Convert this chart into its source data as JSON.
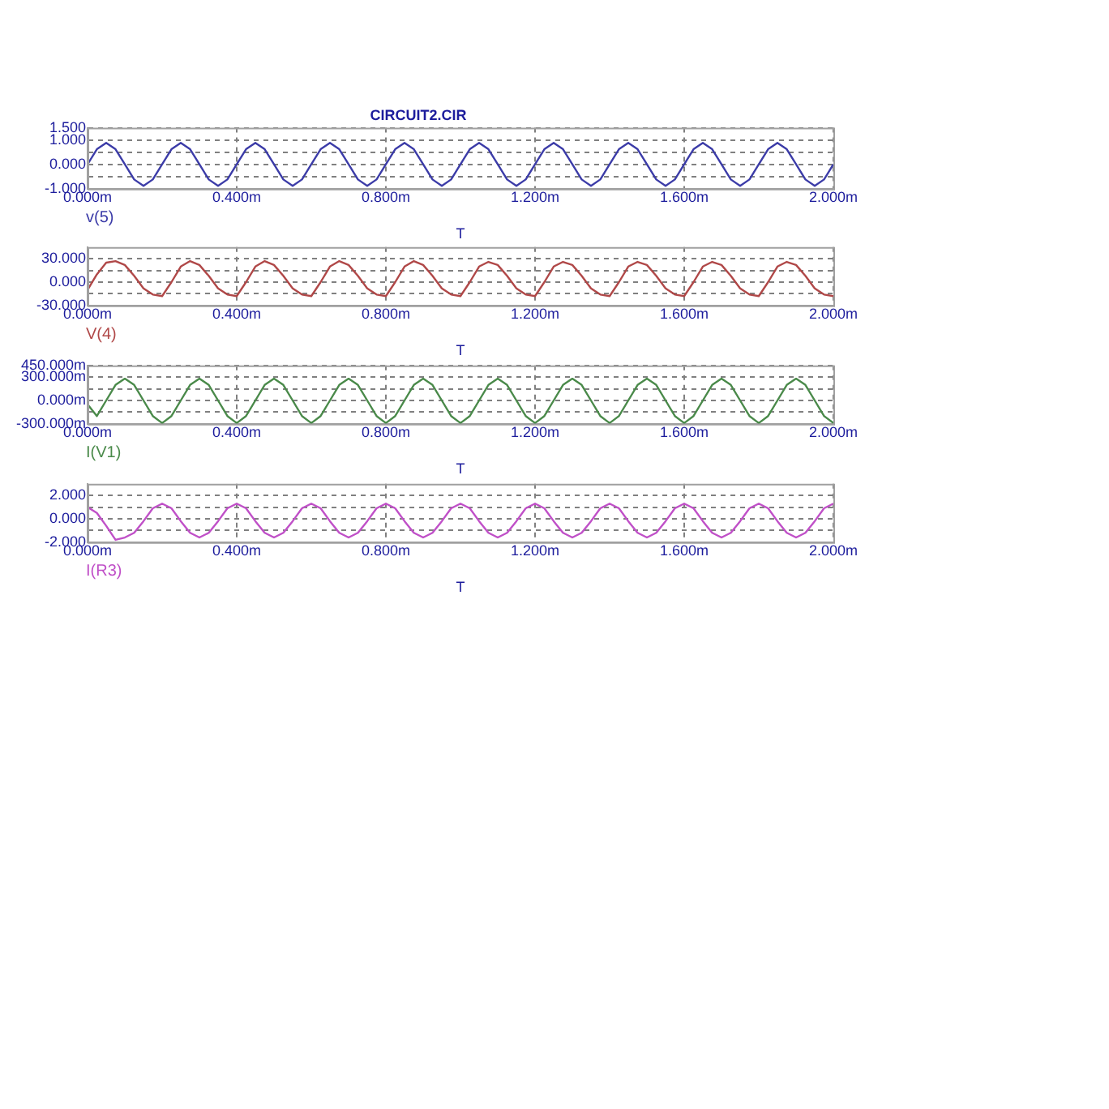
{
  "chart_data": [
    {
      "type": "line",
      "title": "CIRCUIT2.CIR",
      "xlabel": "T",
      "grid": true,
      "legend": false,
      "marker": "none",
      "line_style": "solid",
      "xlim": [
        0,
        2
      ],
      "xticks": [
        {
          "value": 0,
          "label": "0.000m"
        },
        {
          "value": 0.4,
          "label": "0.400m"
        },
        {
          "value": 0.8,
          "label": "0.800m"
        },
        {
          "value": 1.2,
          "label": "1.200m"
        },
        {
          "value": 1.6,
          "label": "1.600m"
        },
        {
          "value": 2,
          "label": "2.000m"
        }
      ],
      "ylim": [
        -1,
        1.5
      ],
      "yticks": [
        {
          "value": -1,
          "label": "-1.000"
        },
        {
          "value": -0.5,
          "label": null
        },
        {
          "value": 0,
          "label": "0.000"
        },
        {
          "value": 0.5,
          "label": null
        },
        {
          "value": 1,
          "label": "1.000"
        },
        {
          "value": 1.5,
          "label": "1.500"
        }
      ],
      "x": [
        0,
        0.025,
        0.05,
        0.075,
        0.1,
        0.125,
        0.15,
        0.175,
        0.2,
        0.225,
        0.25,
        0.275,
        0.3,
        0.325,
        0.35,
        0.375,
        0.4,
        0.425,
        0.45,
        0.475,
        0.5,
        0.525,
        0.55,
        0.575,
        0.6,
        0.625,
        0.65,
        0.675,
        0.7,
        0.725,
        0.75,
        0.775,
        0.8,
        0.825,
        0.85,
        0.875,
        0.9,
        0.925,
        0.95,
        0.975,
        1,
        1.025,
        1.05,
        1.075,
        1.1,
        1.125,
        1.15,
        1.175,
        1.2,
        1.225,
        1.25,
        1.275,
        1.3,
        1.325,
        1.35,
        1.375,
        1.4,
        1.425,
        1.45,
        1.475,
        1.5,
        1.525,
        1.55,
        1.575,
        1.6,
        1.625,
        1.65,
        1.675,
        1.7,
        1.725,
        1.75,
        1.775,
        1.8,
        1.825,
        1.85,
        1.875,
        1.9,
        1.925,
        1.95,
        1.975,
        2
      ],
      "series": [
        {
          "name": "v(5)",
          "color": "#3c3ca8",
          "values": [
            0,
            0.62,
            0.88,
            0.62,
            0,
            -0.62,
            -0.88,
            -0.62,
            0,
            0.62,
            0.88,
            0.62,
            0,
            -0.62,
            -0.88,
            -0.62,
            0,
            0.62,
            0.88,
            0.62,
            0,
            -0.62,
            -0.88,
            -0.62,
            0,
            0.62,
            0.88,
            0.62,
            0,
            -0.62,
            -0.88,
            -0.62,
            0,
            0.62,
            0.88,
            0.62,
            0,
            -0.62,
            -0.88,
            -0.62,
            0,
            0.62,
            0.88,
            0.62,
            0,
            -0.62,
            -0.88,
            -0.62,
            0,
            0.62,
            0.88,
            0.62,
            0,
            -0.62,
            -0.88,
            -0.62,
            0,
            0.62,
            0.88,
            0.62,
            0,
            -0.62,
            -0.88,
            -0.62,
            0,
            0.62,
            0.88,
            0.62,
            0,
            -0.62,
            -0.88,
            -0.62,
            0,
            0.62,
            0.88,
            0.62,
            0,
            -0.62,
            -0.88,
            -0.62,
            0
          ]
        }
      ]
    },
    {
      "type": "line",
      "xlabel": "T",
      "grid": true,
      "legend": false,
      "marker": "none",
      "line_style": "solid",
      "xlim": [
        0,
        2
      ],
      "xticks": [
        {
          "value": 0,
          "label": "0.000m"
        },
        {
          "value": 0.4,
          "label": "0.400m"
        },
        {
          "value": 0.8,
          "label": "0.800m"
        },
        {
          "value": 1.2,
          "label": "1.200m"
        },
        {
          "value": 1.6,
          "label": "1.600m"
        },
        {
          "value": 2,
          "label": "2.000m"
        }
      ],
      "ylim": [
        -30,
        45
      ],
      "yticks": [
        {
          "value": -30,
          "label": "-30.000"
        },
        {
          "value": -15,
          "label": null
        },
        {
          "value": 0,
          "label": "0.000"
        },
        {
          "value": 15,
          "label": null
        },
        {
          "value": 30,
          "label": "30.000"
        }
      ],
      "x": [
        0,
        0.025,
        0.05,
        0.075,
        0.1,
        0.125,
        0.15,
        0.175,
        0.2,
        0.225,
        0.25,
        0.275,
        0.3,
        0.325,
        0.35,
        0.375,
        0.4,
        0.425,
        0.45,
        0.475,
        0.5,
        0.525,
        0.55,
        0.575,
        0.6,
        0.625,
        0.65,
        0.675,
        0.7,
        0.725,
        0.75,
        0.775,
        0.8,
        0.825,
        0.85,
        0.875,
        0.9,
        0.925,
        0.95,
        0.975,
        1,
        1.025,
        1.05,
        1.075,
        1.1,
        1.125,
        1.15,
        1.175,
        1.2,
        1.225,
        1.25,
        1.275,
        1.3,
        1.325,
        1.35,
        1.375,
        1.4,
        1.425,
        1.45,
        1.475,
        1.5,
        1.525,
        1.55,
        1.575,
        1.6,
        1.625,
        1.65,
        1.675,
        1.7,
        1.725,
        1.75,
        1.775,
        1.8,
        1.825,
        1.85,
        1.875,
        1.9,
        1.925,
        1.95,
        1.975,
        2
      ],
      "series": [
        {
          "name": "V(4)",
          "color": "#b04848",
          "values": [
            -10,
            10,
            25,
            27,
            22,
            8,
            -8,
            -16,
            -18,
            0,
            20,
            27,
            22,
            8,
            -8,
            -16,
            -18,
            0,
            20,
            27,
            22,
            8,
            -8,
            -16,
            -18,
            0,
            20,
            27,
            22,
            8,
            -8,
            -16,
            -18,
            0,
            20,
            27,
            22,
            8,
            -8,
            -16,
            -18,
            0,
            20,
            26,
            22,
            8,
            -8,
            -16,
            -18,
            0,
            20,
            26,
            22,
            8,
            -8,
            -16,
            -18,
            0,
            20,
            26,
            22,
            8,
            -8,
            -16,
            -18,
            0,
            20,
            26,
            22,
            8,
            -8,
            -16,
            -18,
            0,
            20,
            26,
            22,
            8,
            -8,
            -16,
            -18
          ]
        }
      ]
    },
    {
      "type": "line",
      "xlabel": "T",
      "grid": true,
      "legend": false,
      "marker": "none",
      "line_style": "solid",
      "xlim": [
        0,
        2
      ],
      "xticks": [
        {
          "value": 0,
          "label": "0.000m"
        },
        {
          "value": 0.4,
          "label": "0.400m"
        },
        {
          "value": 0.8,
          "label": "0.800m"
        },
        {
          "value": 1.2,
          "label": "1.200m"
        },
        {
          "value": 1.6,
          "label": "1.600m"
        },
        {
          "value": 2,
          "label": "2.000m"
        }
      ],
      "ylim": [
        -300,
        450
      ],
      "yticks": [
        {
          "value": -300,
          "label": "-300.000m"
        },
        {
          "value": -150,
          "label": null
        },
        {
          "value": 0,
          "label": "0.000m"
        },
        {
          "value": 150,
          "label": null
        },
        {
          "value": 300,
          "label": "300.000m"
        },
        {
          "value": 450,
          "label": "450.000m"
        }
      ],
      "x": [
        0,
        0.025,
        0.05,
        0.075,
        0.1,
        0.125,
        0.15,
        0.175,
        0.2,
        0.225,
        0.25,
        0.275,
        0.3,
        0.325,
        0.35,
        0.375,
        0.4,
        0.425,
        0.45,
        0.475,
        0.5,
        0.525,
        0.55,
        0.575,
        0.6,
        0.625,
        0.65,
        0.675,
        0.7,
        0.725,
        0.75,
        0.775,
        0.8,
        0.825,
        0.85,
        0.875,
        0.9,
        0.925,
        0.95,
        0.975,
        1,
        1.025,
        1.05,
        1.075,
        1.1,
        1.125,
        1.15,
        1.175,
        1.2,
        1.225,
        1.25,
        1.275,
        1.3,
        1.325,
        1.35,
        1.375,
        1.4,
        1.425,
        1.45,
        1.475,
        1.5,
        1.525,
        1.55,
        1.575,
        1.6,
        1.625,
        1.65,
        1.675,
        1.7,
        1.725,
        1.75,
        1.775,
        1.8,
        1.825,
        1.85,
        1.875,
        1.9,
        1.925,
        1.95,
        1.975,
        2
      ],
      "series": [
        {
          "name": "I(V1)",
          "color": "#4a8a4a",
          "values": [
            -50,
            -200,
            0,
            200,
            280,
            200,
            0,
            -200,
            -290,
            -200,
            0,
            200,
            280,
            200,
            0,
            -200,
            -290,
            -200,
            0,
            200,
            280,
            200,
            0,
            -200,
            -290,
            -200,
            0,
            200,
            280,
            200,
            0,
            -200,
            -290,
            -200,
            0,
            200,
            280,
            200,
            0,
            -200,
            -290,
            -200,
            0,
            200,
            280,
            200,
            0,
            -200,
            -290,
            -200,
            0,
            200,
            280,
            200,
            0,
            -200,
            -290,
            -200,
            0,
            200,
            280,
            200,
            0,
            -200,
            -290,
            -200,
            0,
            200,
            280,
            200,
            0,
            -200,
            -290,
            -200,
            0,
            200,
            280,
            200,
            0,
            -200,
            -290
          ]
        }
      ]
    },
    {
      "type": "line",
      "xlabel": "T",
      "grid": true,
      "legend": false,
      "marker": "none",
      "line_style": "solid",
      "xlim": [
        0,
        2
      ],
      "xticks": [
        {
          "value": 0,
          "label": "0.000m"
        },
        {
          "value": 0.4,
          "label": "0.400m"
        },
        {
          "value": 0.8,
          "label": "0.800m"
        },
        {
          "value": 1.2,
          "label": "1.200m"
        },
        {
          "value": 1.6,
          "label": "1.600m"
        },
        {
          "value": 2,
          "label": "2.000m"
        }
      ],
      "ylim": [
        -2,
        3
      ],
      "yticks": [
        {
          "value": -2,
          "label": "-2.000"
        },
        {
          "value": -1,
          "label": null
        },
        {
          "value": 0,
          "label": "0.000"
        },
        {
          "value": 1,
          "label": null
        },
        {
          "value": 2,
          "label": "2.000"
        }
      ],
      "x": [
        0,
        0.025,
        0.05,
        0.075,
        0.1,
        0.125,
        0.15,
        0.175,
        0.2,
        0.225,
        0.25,
        0.275,
        0.3,
        0.325,
        0.35,
        0.375,
        0.4,
        0.425,
        0.45,
        0.475,
        0.5,
        0.525,
        0.55,
        0.575,
        0.6,
        0.625,
        0.65,
        0.675,
        0.7,
        0.725,
        0.75,
        0.775,
        0.8,
        0.825,
        0.85,
        0.875,
        0.9,
        0.925,
        0.95,
        0.975,
        1,
        1.025,
        1.05,
        1.075,
        1.1,
        1.125,
        1.15,
        1.175,
        1.2,
        1.225,
        1.25,
        1.275,
        1.3,
        1.325,
        1.35,
        1.375,
        1.4,
        1.425,
        1.45,
        1.475,
        1.5,
        1.525,
        1.55,
        1.575,
        1.6,
        1.625,
        1.65,
        1.675,
        1.7,
        1.725,
        1.75,
        1.775,
        1.8,
        1.825,
        1.85,
        1.875,
        1.9,
        1.925,
        1.95,
        1.975,
        2
      ],
      "series": [
        {
          "name": "I(R3)",
          "color": "#c050c8",
          "values": [
            1,
            0.5,
            -0.6,
            -1.8,
            -1.6,
            -1.2,
            -0.2,
            0.9,
            1.3,
            0.9,
            -0.2,
            -1.2,
            -1.6,
            -1.2,
            -0.2,
            0.9,
            1.3,
            0.9,
            -0.2,
            -1.2,
            -1.6,
            -1.2,
            -0.2,
            0.9,
            1.3,
            0.9,
            -0.2,
            -1.2,
            -1.6,
            -1.2,
            -0.2,
            0.9,
            1.3,
            0.9,
            -0.2,
            -1.2,
            -1.6,
            -1.2,
            -0.2,
            0.9,
            1.3,
            0.9,
            -0.2,
            -1.2,
            -1.6,
            -1.2,
            -0.2,
            0.9,
            1.3,
            0.9,
            -0.2,
            -1.2,
            -1.6,
            -1.2,
            -0.2,
            0.9,
            1.3,
            0.9,
            -0.2,
            -1.2,
            -1.6,
            -1.2,
            -0.2,
            0.9,
            1.3,
            0.9,
            -0.2,
            -1.2,
            -1.6,
            -1.2,
            -0.2,
            0.9,
            1.3,
            0.9,
            -0.2,
            -1.2,
            -1.6,
            -1.2,
            -0.2,
            0.9,
            1.3
          ]
        }
      ]
    }
  ]
}
